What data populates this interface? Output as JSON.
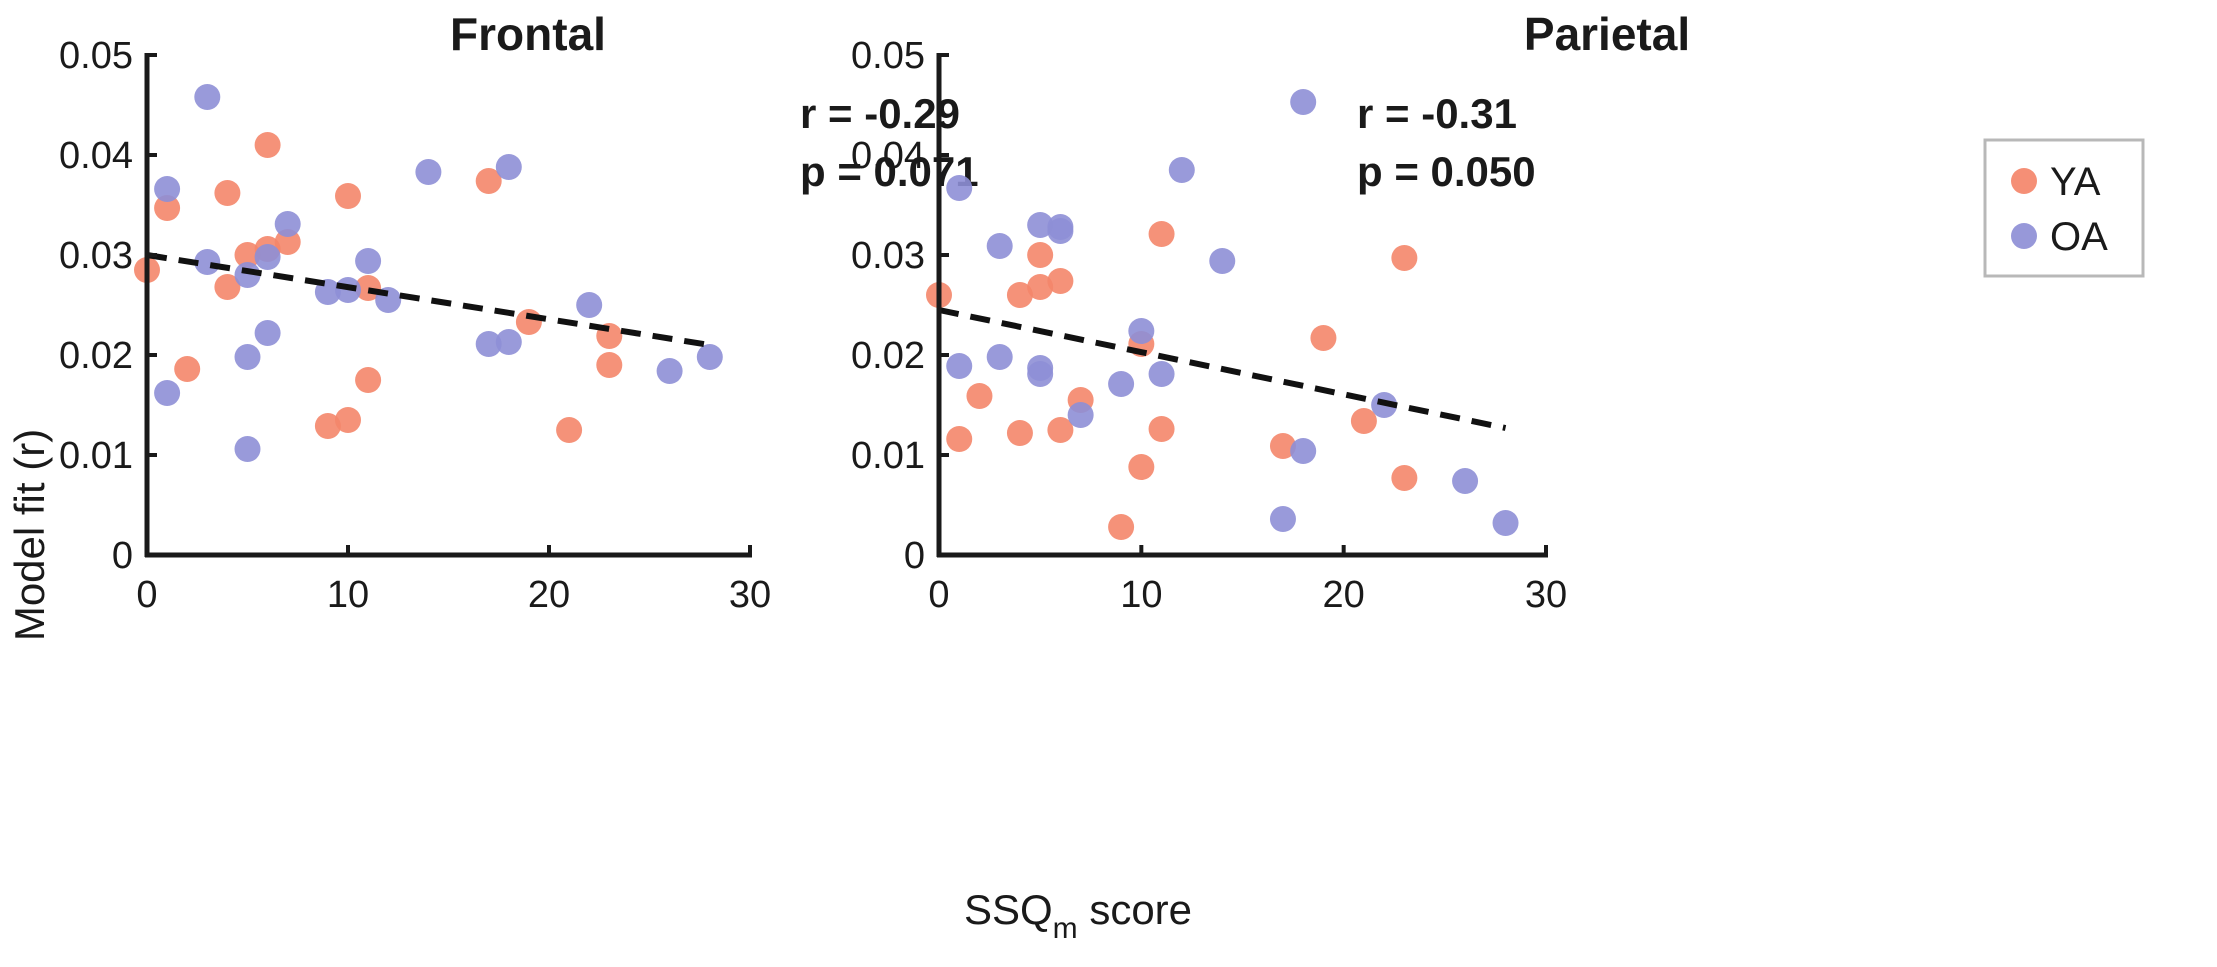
{
  "colors": {
    "ya": "#F4866A",
    "oa": "#8E8FD6",
    "axis": "#1a1a1a",
    "trend": "#111111",
    "legend_border": "#b8b8b8"
  },
  "shared": {
    "ylabel": "Model fit (r)",
    "xlabel_main": "SSQ",
    "xlabel_sub": "m",
    "xlabel_rest": " score"
  },
  "legend": {
    "ya": "YA",
    "oa": "OA"
  },
  "chart_data": [
    {
      "type": "scatter",
      "title": "Frontal",
      "stat_r": "r = -0.29",
      "stat_p": "p = 0.071",
      "xlim": [
        0,
        30
      ],
      "ylim": [
        0,
        0.05
      ],
      "xticks": [
        "0",
        "10",
        "20",
        "30"
      ],
      "yticks": [
        "0",
        "0.01",
        "0.02",
        "0.03",
        "0.04",
        "0.05"
      ],
      "series": [
        {
          "name": "YA",
          "color_key": "ya",
          "points": [
            [
              0,
              0.0285
            ],
            [
              1,
              0.0347
            ],
            [
              2,
              0.0186
            ],
            [
              4,
              0.0268
            ],
            [
              4,
              0.0362
            ],
            [
              5,
              0.03
            ],
            [
              6,
              0.0306
            ],
            [
              6,
              0.041
            ],
            [
              7,
              0.0313
            ],
            [
              9,
              0.0129
            ],
            [
              10,
              0.0135
            ],
            [
              10,
              0.0359
            ],
            [
              11,
              0.0175
            ],
            [
              11,
              0.0267
            ],
            [
              17,
              0.0374
            ],
            [
              19,
              0.0233
            ],
            [
              21,
              0.0125
            ],
            [
              23,
              0.0219
            ],
            [
              23,
              0.019
            ]
          ]
        },
        {
          "name": "OA",
          "color_key": "oa",
          "points": [
            [
              1,
              0.0366
            ],
            [
              1,
              0.0162
            ],
            [
              3,
              0.0458
            ],
            [
              3,
              0.0293
            ],
            [
              5,
              0.028
            ],
            [
              5,
              0.0198
            ],
            [
              5,
              0.0106
            ],
            [
              6,
              0.0298
            ],
            [
              6,
              0.0222
            ],
            [
              7,
              0.0331
            ],
            [
              9,
              0.0263
            ],
            [
              10,
              0.0265
            ],
            [
              11,
              0.0294
            ],
            [
              12,
              0.0255
            ],
            [
              14,
              0.0383
            ],
            [
              17,
              0.0211
            ],
            [
              18,
              0.0213
            ],
            [
              18,
              0.0388
            ],
            [
              22,
              0.025
            ],
            [
              26,
              0.0184
            ],
            [
              28,
              0.0198
            ]
          ]
        }
      ],
      "trend": {
        "x": [
          0,
          28
        ],
        "y": [
          0.03,
          0.021
        ]
      }
    },
    {
      "type": "scatter",
      "title": "Parietal",
      "stat_r": "r = -0.31",
      "stat_p": "p = 0.050",
      "xlim": [
        0,
        30
      ],
      "ylim": [
        0,
        0.05
      ],
      "xticks": [
        "0",
        "10",
        "20",
        "30"
      ],
      "yticks": [
        "0",
        "0.01",
        "0.02",
        "0.03",
        "0.04",
        "0.05"
      ],
      "series": [
        {
          "name": "YA",
          "color_key": "ya",
          "points": [
            [
              0,
              0.026
            ],
            [
              1,
              0.0116
            ],
            [
              2,
              0.0159
            ],
            [
              4,
              0.026
            ],
            [
              4,
              0.0122
            ],
            [
              5,
              0.03
            ],
            [
              5,
              0.0268
            ],
            [
              6,
              0.0274
            ],
            [
              6,
              0.0125
            ],
            [
              7,
              0.0155
            ],
            [
              9,
              0.0028
            ],
            [
              10,
              0.0211
            ],
            [
              10,
              0.0088
            ],
            [
              11,
              0.0321
            ],
            [
              11,
              0.0126
            ],
            [
              17,
              0.0109
            ],
            [
              19,
              0.0217
            ],
            [
              21,
              0.0134
            ],
            [
              23,
              0.0297
            ],
            [
              23,
              0.0077
            ]
          ]
        },
        {
          "name": "OA",
          "color_key": "oa",
          "points": [
            [
              1,
              0.0367
            ],
            [
              1,
              0.0189
            ],
            [
              3,
              0.0309
            ],
            [
              3,
              0.0198
            ],
            [
              5,
              0.033
            ],
            [
              5,
              0.0187
            ],
            [
              5,
              0.0181
            ],
            [
              6,
              0.0328
            ],
            [
              6,
              0.0324
            ],
            [
              7,
              0.014
            ],
            [
              9,
              0.0171
            ],
            [
              10,
              0.0224
            ],
            [
              11,
              0.0181
            ],
            [
              12,
              0.0385
            ],
            [
              14,
              0.0294
            ],
            [
              17,
              0.0036
            ],
            [
              18,
              0.0453
            ],
            [
              18,
              0.0104
            ],
            [
              22,
              0.015
            ],
            [
              26,
              0.0074
            ],
            [
              28,
              0.0032
            ]
          ]
        }
      ],
      "trend": {
        "x": [
          0,
          28
        ],
        "y": [
          0.0245,
          0.0127
        ]
      }
    }
  ]
}
